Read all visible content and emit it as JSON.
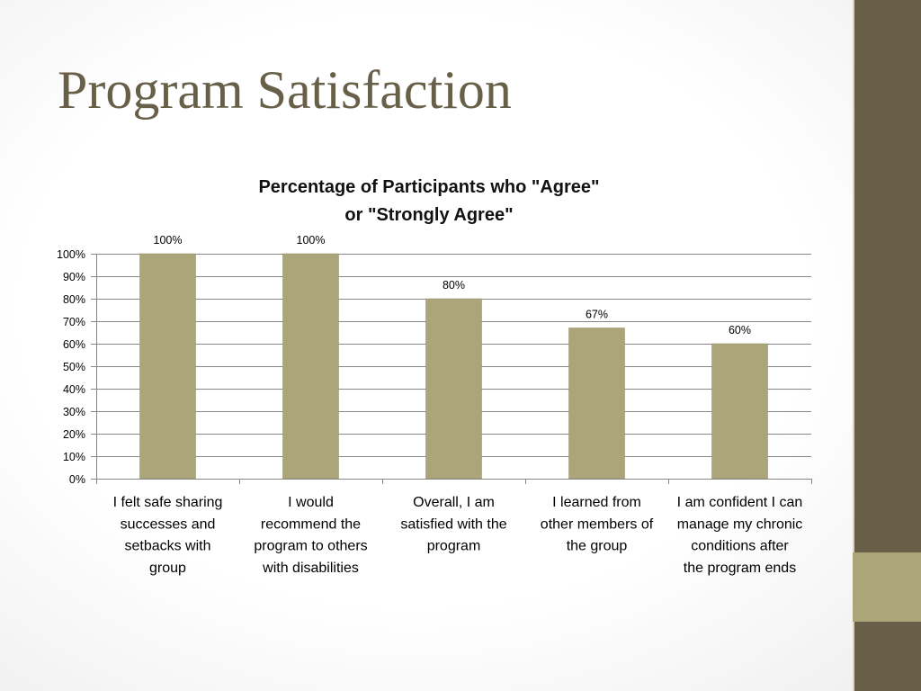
{
  "slide": {
    "title": "Program Satisfaction"
  },
  "colors": {
    "title": "#675f48",
    "side_bar": "#675f48",
    "side_accent": "#aba679",
    "bar": "#aba679",
    "bar_edge": "#8f8a64",
    "gridline": "#868686"
  },
  "chart_data": {
    "type": "bar",
    "title_lines": [
      "Percentage of Participants who \"Agree\"",
      "or \"Strongly Agree\""
    ],
    "categories": [
      [
        "I felt safe sharing",
        "successes and",
        "setbacks with",
        "group"
      ],
      [
        "I would",
        "recommend the",
        "program to others",
        "with disabilities"
      ],
      [
        "Overall, I am",
        "satisfied with the",
        "program"
      ],
      [
        "I learned from",
        "other members of",
        "the group"
      ],
      [
        "I am confident I can",
        "manage my chronic",
        "conditions after",
        "the program ends"
      ]
    ],
    "values": [
      100,
      100,
      80,
      67,
      60
    ],
    "data_labels": [
      "100%",
      "100%",
      "80%",
      "67%",
      "60%"
    ],
    "ylim": [
      0,
      100
    ],
    "yticks": [
      0,
      10,
      20,
      30,
      40,
      50,
      60,
      70,
      80,
      90,
      100
    ],
    "ytick_labels": [
      "0%",
      "10%",
      "20%",
      "30%",
      "40%",
      "50%",
      "60%",
      "70%",
      "80%",
      "90%",
      "100%"
    ],
    "grid": true,
    "legend": "none"
  }
}
